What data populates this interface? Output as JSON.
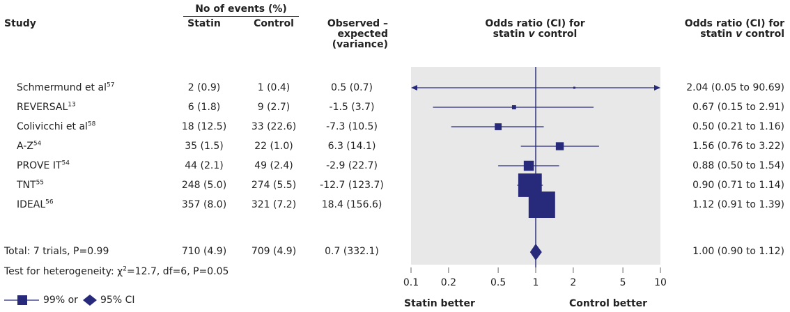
{
  "headers": {
    "study": "Study",
    "events_group": "No of events (%)",
    "statin": "Statin",
    "control": "Control",
    "oe_line1": "Observed –",
    "oe_line2": "expected",
    "oe_line3": "(variance)",
    "plot_title_line1": "Odds ratio (CI) for",
    "plot_title_line2_pre": "statin ",
    "plot_title_line2_v": "v",
    "plot_title_line2_post": " control",
    "or_col_line1": "Odds ratio (CI) for",
    "or_col_line2_pre": "statin ",
    "or_col_line2_v": "v",
    "or_col_line2_post": " control"
  },
  "rows": [
    {
      "study": "Schmermund et al",
      "sup": "57",
      "statin": "2 (0.9)",
      "control": "1 (0.4)",
      "oe": "0.5 (0.7)",
      "or_text": "2.04 (0.05 to 90.69)"
    },
    {
      "study": "REVERSAL",
      "sup": "13",
      "statin": "6 (1.8)",
      "control": "9 (2.7)",
      "oe": "-1.5 (3.7)",
      "or_text": "0.67 (0.15 to 2.91)"
    },
    {
      "study": "Colivicchi et al",
      "sup": "58",
      "statin": "18 (12.5)",
      "control": "33 (22.6)",
      "oe": "-7.3 (10.5)",
      "or_text": "0.50 (0.21 to 1.16)"
    },
    {
      "study": "A-Z",
      "sup": "54",
      "statin": "35 (1.5)",
      "control": "22 (1.0)",
      "oe": "6.3 (14.1)",
      "or_text": "1.56 (0.76 to 3.22)"
    },
    {
      "study": "PROVE IT",
      "sup": "54",
      "statin": "44 (2.1)",
      "control": "49 (2.4)",
      "oe": "-2.9 (22.7)",
      "or_text": "0.88 (0.50 to 1.54)"
    },
    {
      "study": "TNT",
      "sup": "55",
      "statin": "248 (5.0)",
      "control": "274 (5.5)",
      "oe": "-12.7 (123.7)",
      "or_text": "0.90 (0.71 to 1.14)"
    },
    {
      "study": "IDEAL",
      "sup": "56",
      "statin": "357 (8.0)",
      "control": "321 (7.2)",
      "oe": "18.4 (156.6)",
      "or_text": "1.12 (0.91 to 1.39)"
    }
  ],
  "total": {
    "label": "Total: 7 trials, P=0.99",
    "statin": "710 (4.9)",
    "control": "709 (4.9)",
    "oe": "0.7 (332.1)",
    "or_text": "1.00 (0.90 to 1.12)"
  },
  "heterogeneity": {
    "pre": "Test for heterogeneity: ",
    "chi": "χ",
    "sup": "2",
    "post": "=12.7, df=6, P=0.05"
  },
  "legend": {
    "ci99": "99% or",
    "ci95": "95% CI"
  },
  "axis": {
    "left_label": "Statin better",
    "right_label": "Control better"
  },
  "colors": {
    "mark": "#27297a",
    "panel": "#e8e8e8",
    "text": "#222222"
  },
  "chart_data": {
    "type": "forest",
    "x_scale": "log",
    "xlim": [
      0.1,
      10
    ],
    "x_ticks": [
      0.1,
      0.2,
      0.5,
      1,
      2,
      5,
      10
    ],
    "x_tick_labels": [
      "0.1",
      "0.2",
      "0.5",
      "1",
      "2",
      "5",
      "10"
    ],
    "reference_line": 1,
    "series": [
      {
        "study": "Schmermund et al",
        "or": 2.04,
        "lower": 0.05,
        "upper": 90.69,
        "weight": 0.7,
        "arrow_left": true,
        "arrow_right": true
      },
      {
        "study": "REVERSAL",
        "or": 0.67,
        "lower": 0.15,
        "upper": 2.91,
        "weight": 3.7
      },
      {
        "study": "Colivicchi et al",
        "or": 0.5,
        "lower": 0.21,
        "upper": 1.16,
        "weight": 10.5
      },
      {
        "study": "A-Z",
        "or": 1.56,
        "lower": 0.76,
        "upper": 3.22,
        "weight": 14.1
      },
      {
        "study": "PROVE IT",
        "or": 0.88,
        "lower": 0.5,
        "upper": 1.54,
        "weight": 22.7
      },
      {
        "study": "TNT",
        "or": 0.9,
        "lower": 0.71,
        "upper": 1.14,
        "weight": 123.7
      },
      {
        "study": "IDEAL",
        "or": 1.12,
        "lower": 0.91,
        "upper": 1.39,
        "weight": 156.6
      }
    ],
    "pooled": {
      "or": 1.0,
      "lower": 0.9,
      "upper": 1.12
    }
  }
}
